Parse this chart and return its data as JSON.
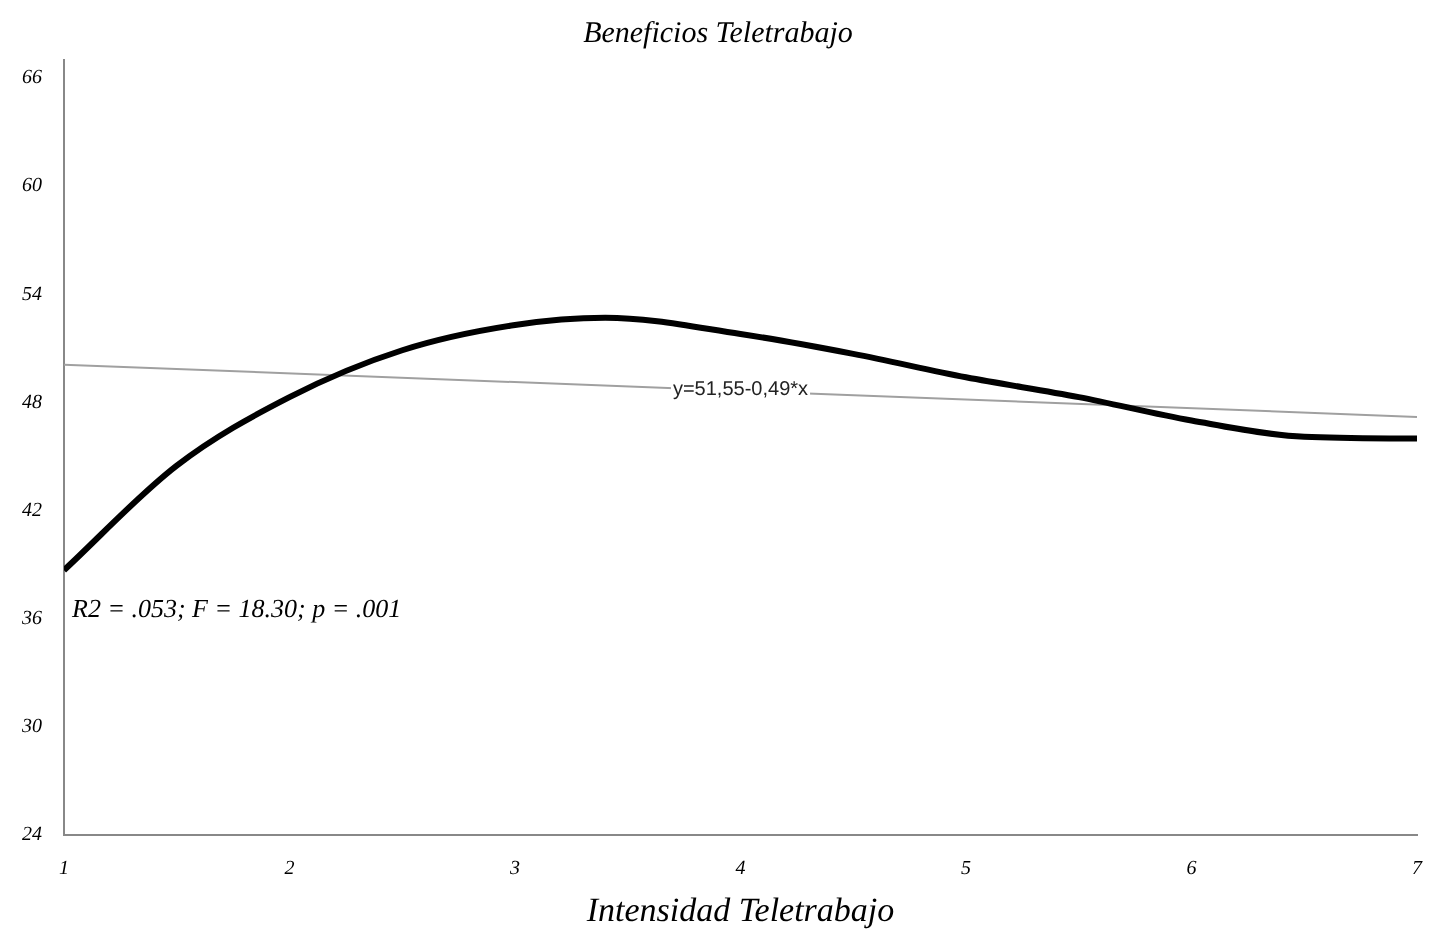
{
  "chart_data": {
    "type": "line",
    "title": "Beneficios Teletrabajo",
    "xlabel": "Intensidad Teletrabajo",
    "xlim": [
      1,
      7
    ],
    "xticks": [
      1,
      2,
      3,
      4,
      5,
      6,
      7
    ],
    "ylim": [
      24,
      67
    ],
    "yticks": [
      24,
      30,
      36,
      42,
      48,
      54,
      60,
      66
    ],
    "grid": false,
    "legend": false,
    "marker": "none",
    "series": [
      {
        "color": "#000000",
        "x": [
          1,
          1.5,
          2,
          2.5,
          3,
          3.4,
          4,
          4.5,
          5,
          5.5,
          6,
          6.5,
          7
        ],
        "values": [
          38.7,
          44.5,
          48.3,
          50.9,
          52.3,
          52.7,
          51.8,
          50.7,
          49.4,
          48.3,
          47.0,
          46.1,
          46.0
        ]
      },
      {
        "color": "#a0a0a0",
        "x": [
          1,
          7
        ],
        "values": [
          50.1,
          47.2
        ]
      }
    ],
    "annotations": [
      {
        "text": "y=51,55-0,49*x",
        "x": 4.0,
        "y": 48.7
      },
      "R2 = .053; F = 18.30; p = .001"
    ]
  }
}
